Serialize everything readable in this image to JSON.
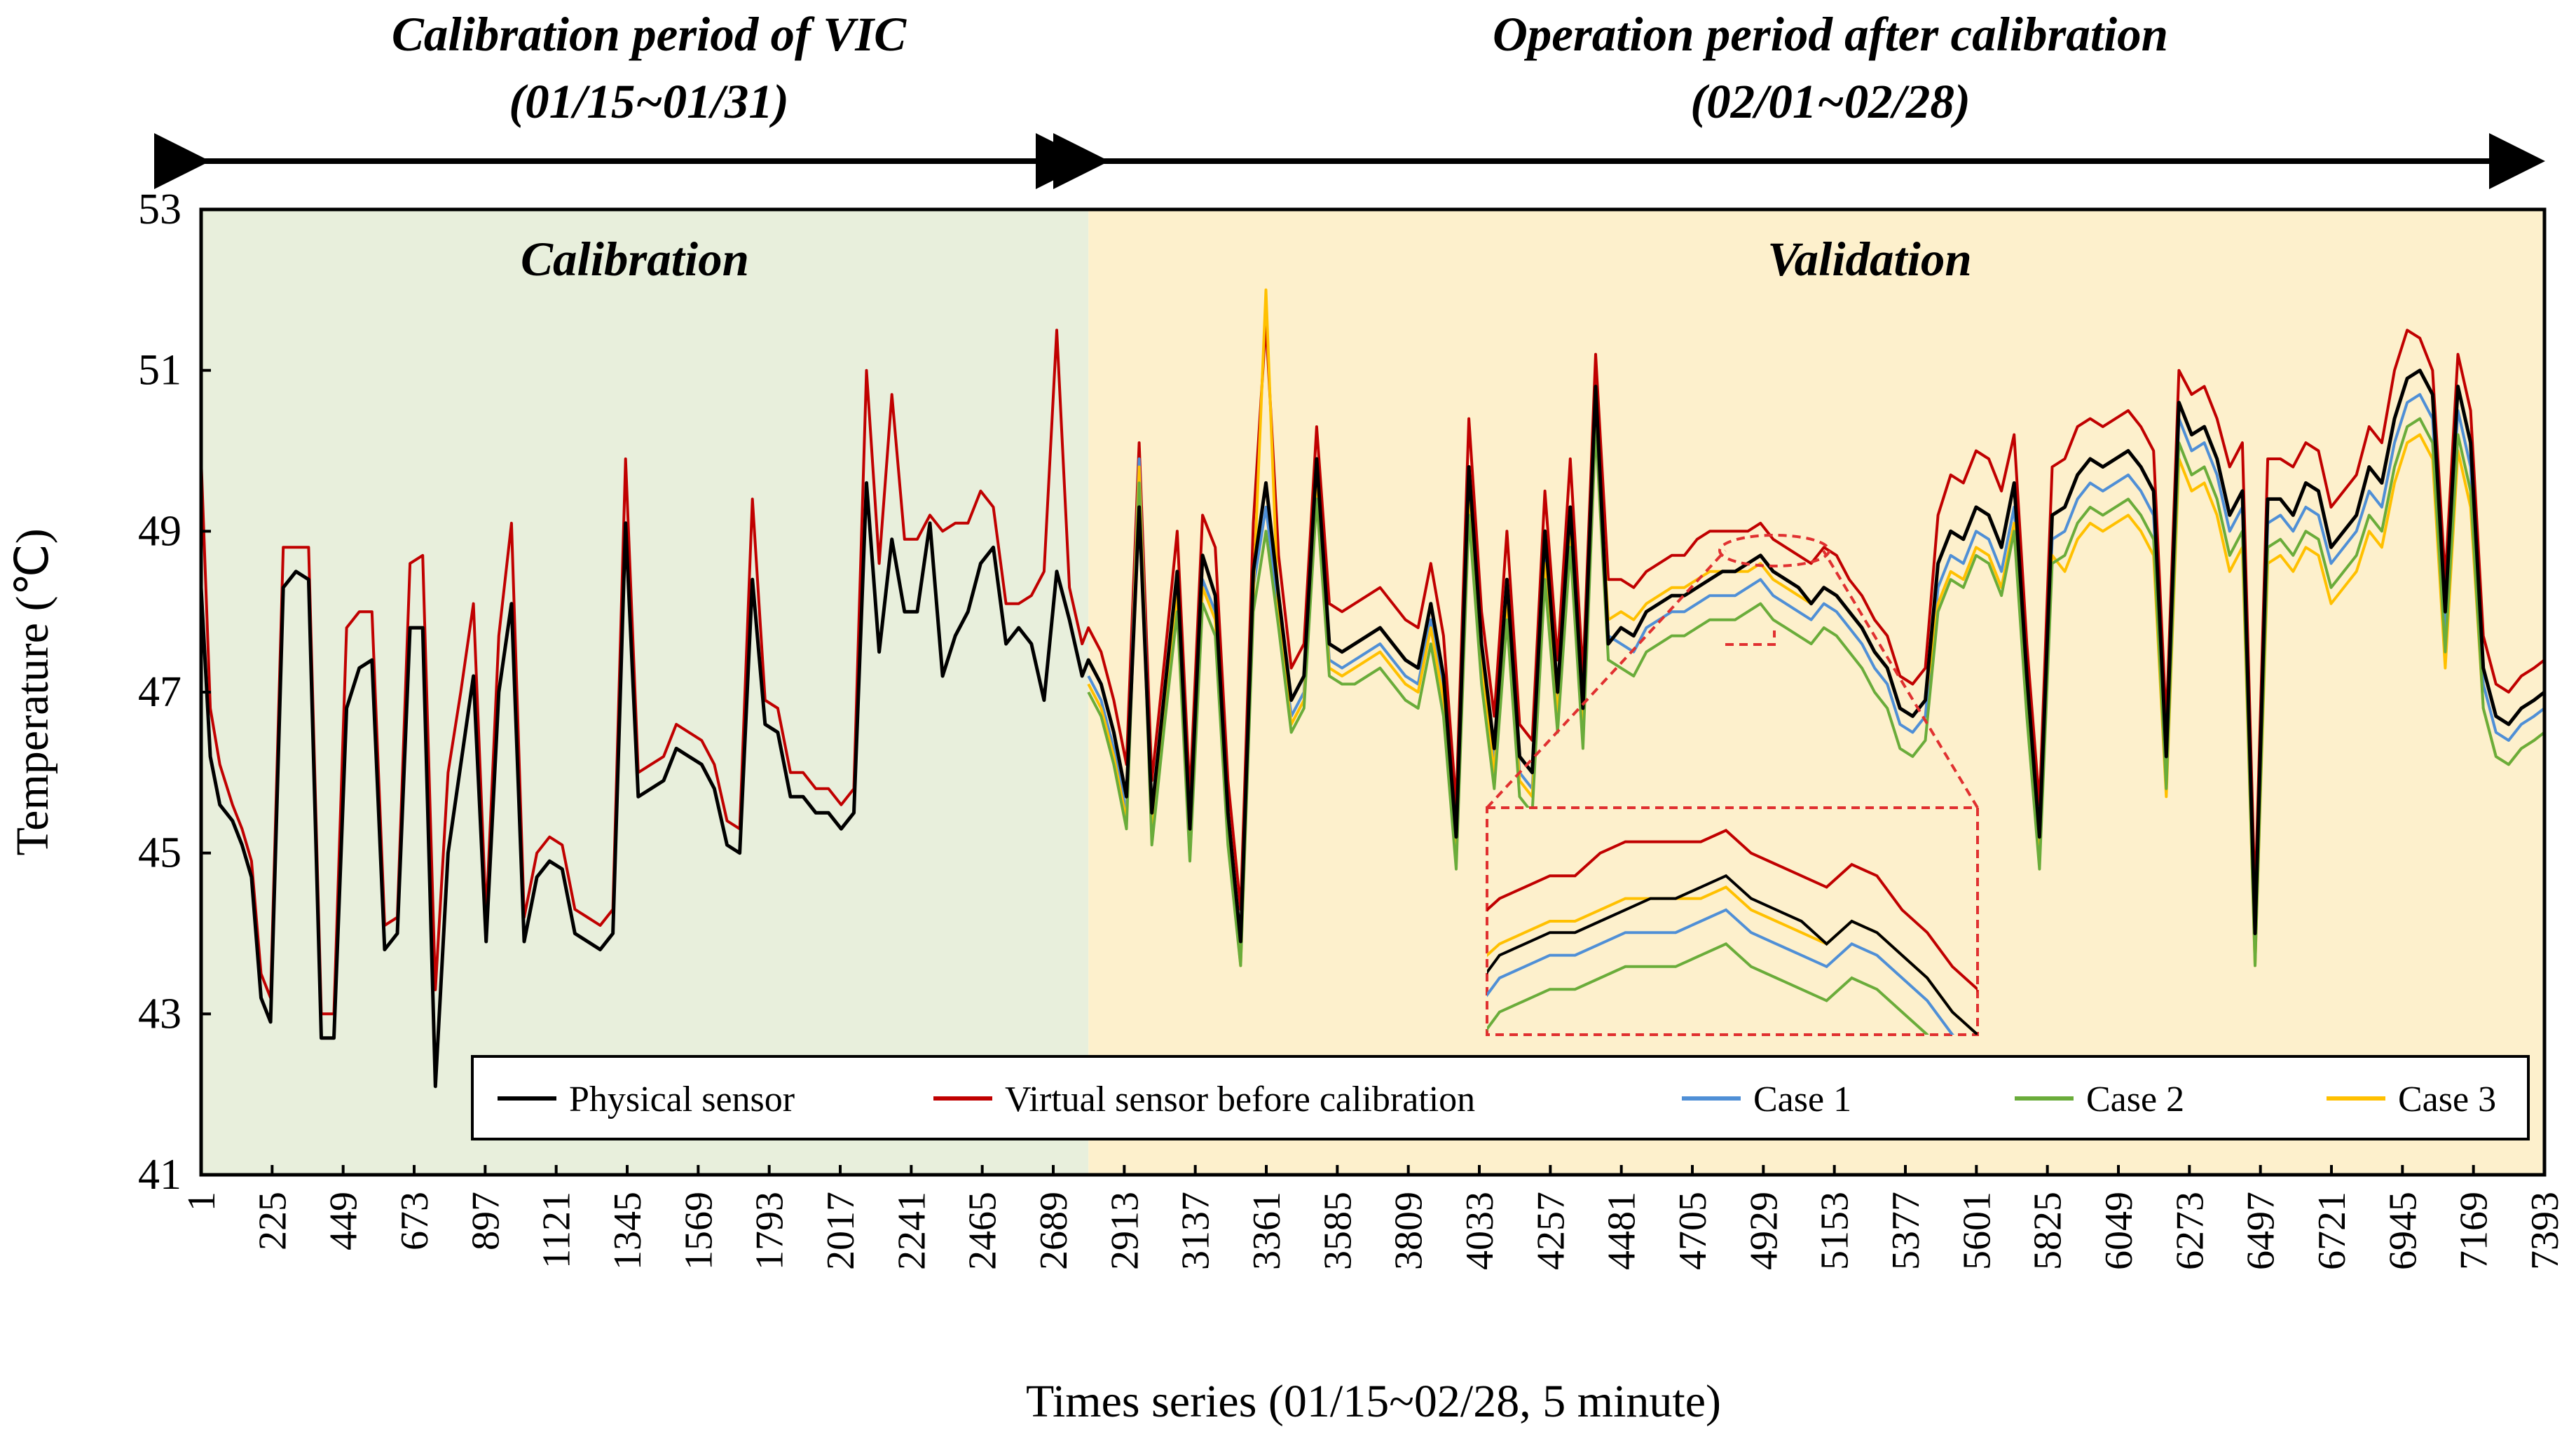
{
  "headers": {
    "left_line1": "Calibration period of VIC",
    "left_line2": "(01/15~01/31)",
    "right_line1": "Operation period after calibration",
    "right_line2": "(02/01~02/28)"
  },
  "region_labels": {
    "calibration": "Calibration",
    "validation": "Validation"
  },
  "colors": {
    "calibration_bg": "#e8efdc",
    "validation_bg": "#fdf0cc",
    "physical": "#000000",
    "virtual": "#c00000",
    "case1": "#4f8fd6",
    "case2": "#6aac3a",
    "case3": "#ffc000",
    "zoom_box": "#e03030"
  },
  "chart_data": {
    "type": "line",
    "title": "",
    "xlabel": "Times series (01/15~02/28, 5 minute)",
    "ylabel": "Temperature (℃)",
    "xlim": [
      1,
      7393
    ],
    "ylim": [
      41,
      53
    ],
    "yticks": [
      41,
      43,
      45,
      47,
      49,
      51,
      53
    ],
    "xticks": [
      "1",
      "225",
      "449",
      "673",
      "897",
      "1121",
      "1345",
      "1569",
      "1793",
      "2017",
      "2241",
      "2465",
      "2689",
      "2913",
      "3137",
      "3361",
      "3585",
      "3809",
      "4033",
      "4257",
      "4481",
      "4705",
      "4929",
      "5153",
      "5377",
      "5601",
      "5825",
      "6049",
      "6273",
      "6497",
      "6721",
      "6945",
      "7169",
      "7393"
    ],
    "calibration_end": 2800,
    "legend_position": "bottom-right",
    "grid": false,
    "x": [
      1,
      30,
      60,
      100,
      130,
      160,
      190,
      220,
      260,
      300,
      340,
      380,
      420,
      460,
      500,
      540,
      580,
      620,
      660,
      700,
      740,
      780,
      820,
      860,
      900,
      940,
      980,
      1020,
      1060,
      1100,
      1140,
      1180,
      1220,
      1260,
      1300,
      1340,
      1380,
      1420,
      1460,
      1500,
      1540,
      1580,
      1620,
      1660,
      1700,
      1740,
      1780,
      1820,
      1860,
      1900,
      1940,
      1980,
      2020,
      2060,
      2100,
      2140,
      2180,
      2220,
      2260,
      2300,
      2340,
      2380,
      2420,
      2460,
      2500,
      2540,
      2580,
      2620,
      2660,
      2700,
      2740,
      2780,
      2800,
      2840,
      2880,
      2920,
      2960,
      3000,
      3040,
      3080,
      3120,
      3160,
      3200,
      3240,
      3280,
      3320,
      3360,
      3400,
      3440,
      3480,
      3520,
      3560,
      3600,
      3640,
      3680,
      3720,
      3760,
      3800,
      3840,
      3880,
      3920,
      3960,
      4000,
      4040,
      4080,
      4120,
      4160,
      4200,
      4240,
      4280,
      4320,
      4360,
      4400,
      4440,
      4480,
      4520,
      4560,
      4600,
      4640,
      4680,
      4720,
      4760,
      4800,
      4840,
      4880,
      4920,
      4960,
      5000,
      5040,
      5080,
      5120,
      5160,
      5200,
      5240,
      5280,
      5320,
      5360,
      5400,
      5440,
      5480,
      5520,
      5560,
      5600,
      5640,
      5680,
      5720,
      5760,
      5800,
      5840,
      5880,
      5920,
      5960,
      6000,
      6040,
      6080,
      6120,
      6160,
      6200,
      6240,
      6280,
      6320,
      6360,
      6400,
      6440,
      6480,
      6520,
      6560,
      6600,
      6640,
      6680,
      6720,
      6760,
      6800,
      6840,
      6880,
      6920,
      6960,
      7000,
      7040,
      7080,
      7120,
      7160,
      7200,
      7240,
      7280,
      7320,
      7360,
      7393
    ],
    "series": [
      {
        "name": "Physical sensor",
        "color": "#000000",
        "values": [
          48.3,
          46.2,
          45.6,
          45.4,
          45.1,
          44.7,
          43.2,
          42.9,
          48.3,
          48.5,
          48.4,
          42.7,
          42.7,
          46.8,
          47.3,
          47.4,
          43.8,
          44.0,
          47.8,
          47.8,
          42.1,
          45.0,
          46.1,
          47.2,
          43.9,
          47.0,
          48.1,
          43.9,
          44.7,
          44.9,
          44.8,
          44.0,
          43.9,
          43.8,
          44.0,
          49.1,
          45.7,
          45.8,
          45.9,
          46.3,
          46.2,
          46.1,
          45.8,
          45.1,
          45.0,
          48.4,
          46.6,
          46.5,
          45.7,
          45.7,
          45.5,
          45.5,
          45.3,
          45.5,
          49.6,
          47.5,
          48.9,
          48.0,
          48.0,
          49.1,
          47.2,
          47.7,
          48.0,
          48.6,
          48.8,
          47.6,
          47.8,
          47.6,
          46.9,
          48.5,
          47.9,
          47.2,
          47.4,
          47.1,
          46.5,
          45.7,
          49.3,
          45.5,
          47.0,
          48.5,
          45.3,
          48.7,
          48.2,
          45.5,
          43.9,
          48.5,
          49.6,
          48.2,
          46.9,
          47.2,
          49.9,
          47.6,
          47.5,
          47.6,
          47.7,
          47.8,
          47.6,
          47.4,
          47.3,
          48.1,
          47.2,
          45.2,
          49.8,
          47.6,
          46.3,
          48.4,
          46.2,
          46.0,
          49.0,
          47.0,
          49.3,
          46.8,
          50.8,
          47.6,
          47.8,
          47.7,
          48.0,
          48.1,
          48.2,
          48.2,
          48.3,
          48.4,
          48.5,
          48.5,
          48.6,
          48.7,
          48.5,
          48.4,
          48.3,
          48.1,
          48.3,
          48.2,
          48.0,
          47.8,
          47.5,
          47.3,
          46.8,
          46.7,
          46.9,
          48.6,
          49.0,
          48.9,
          49.3,
          49.2,
          48.8,
          49.6,
          47.2,
          45.2,
          49.2,
          49.3,
          49.7,
          49.9,
          49.8,
          49.9,
          50.0,
          49.8,
          49.5,
          46.2,
          50.6,
          50.2,
          50.3,
          49.9,
          49.2,
          49.5,
          44.0,
          49.4,
          49.4,
          49.2,
          49.6,
          49.5,
          48.8,
          49.0,
          49.2,
          49.8,
          49.6,
          50.4,
          50.9,
          51.0,
          50.7,
          48.0,
          50.8,
          50.1,
          47.3,
          46.7,
          46.6,
          46.8,
          46.9,
          47.0
        ]
      },
      {
        "name": "Virtual sensor before calibration",
        "color": "#c00000",
        "values": [
          49.9,
          46.8,
          46.1,
          45.6,
          45.3,
          44.9,
          43.5,
          43.2,
          48.8,
          48.8,
          48.8,
          43.0,
          43.0,
          47.8,
          48.0,
          48.0,
          44.1,
          44.2,
          48.6,
          48.7,
          43.3,
          46.0,
          47.0,
          48.1,
          44.2,
          47.7,
          49.1,
          44.2,
          45.0,
          45.2,
          45.1,
          44.3,
          44.2,
          44.1,
          44.3,
          49.9,
          46.0,
          46.1,
          46.2,
          46.6,
          46.5,
          46.4,
          46.1,
          45.4,
          45.3,
          49.4,
          46.9,
          46.8,
          46.0,
          46.0,
          45.8,
          45.8,
          45.6,
          45.8,
          51.0,
          48.6,
          50.7,
          48.9,
          48.9,
          49.2,
          49.0,
          49.1,
          49.1,
          49.5,
          49.3,
          48.1,
          48.1,
          48.2,
          48.5,
          51.5,
          48.3,
          47.6,
          47.8,
          47.5,
          46.9,
          46.1,
          50.1,
          45.9,
          47.4,
          49.0,
          45.7,
          49.2,
          48.8,
          45.9,
          44.3,
          49.1,
          51.6,
          48.7,
          47.3,
          47.6,
          50.3,
          48.1,
          48.0,
          48.1,
          48.2,
          48.3,
          48.1,
          47.9,
          47.8,
          48.6,
          47.7,
          45.6,
          50.4,
          48.0,
          46.7,
          49.0,
          46.6,
          46.4,
          49.5,
          47.4,
          49.9,
          47.2,
          51.2,
          48.4,
          48.4,
          48.3,
          48.5,
          48.6,
          48.7,
          48.7,
          48.9,
          49.0,
          49.0,
          49.0,
          49.0,
          49.1,
          48.9,
          48.8,
          48.7,
          48.6,
          48.8,
          48.7,
          48.4,
          48.2,
          47.9,
          47.7,
          47.2,
          47.1,
          47.3,
          49.2,
          49.7,
          49.6,
          50.0,
          49.9,
          49.5,
          50.2,
          47.6,
          45.6,
          49.8,
          49.9,
          50.3,
          50.4,
          50.3,
          50.4,
          50.5,
          50.3,
          50.0,
          46.6,
          51.0,
          50.7,
          50.8,
          50.4,
          49.8,
          50.1,
          44.4,
          49.9,
          49.9,
          49.8,
          50.1,
          50.0,
          49.3,
          49.5,
          49.7,
          50.3,
          50.1,
          51.0,
          51.5,
          51.4,
          51.0,
          48.4,
          51.2,
          50.5,
          47.7,
          47.1,
          47.0,
          47.2,
          47.3,
          47.4
        ]
      },
      {
        "name": "Case 1",
        "color": "#4f8fd6",
        "values": [
          null,
          null,
          null,
          null,
          null,
          null,
          null,
          null,
          null,
          null,
          null,
          null,
          null,
          null,
          null,
          null,
          null,
          null,
          null,
          null,
          null,
          null,
          null,
          null,
          null,
          null,
          null,
          null,
          null,
          null,
          null,
          null,
          null,
          null,
          null,
          null,
          null,
          null,
          null,
          null,
          null,
          null,
          null,
          null,
          null,
          null,
          null,
          null,
          null,
          null,
          null,
          null,
          null,
          null,
          null,
          null,
          null,
          null,
          null,
          null,
          null,
          null,
          null,
          null,
          null,
          null,
          null,
          null,
          null,
          null,
          null,
          null,
          47.2,
          46.9,
          46.3,
          45.5,
          49.9,
          45.3,
          46.8,
          48.3,
          45.1,
          48.4,
          48.0,
          45.3,
          43.7,
          48.3,
          49.3,
          48.0,
          46.7,
          47.0,
          49.7,
          47.4,
          47.3,
          47.4,
          47.5,
          47.6,
          47.4,
          47.2,
          47.1,
          47.9,
          47.0,
          45.0,
          49.5,
          47.4,
          46.1,
          48.2,
          46.0,
          45.8,
          48.7,
          46.8,
          49.1,
          46.6,
          50.6,
          47.7,
          47.6,
          47.5,
          47.8,
          47.9,
          48.0,
          48.0,
          48.1,
          48.2,
          48.2,
          48.2,
          48.3,
          48.4,
          48.2,
          48.1,
          48.0,
          47.9,
          48.1,
          48.0,
          47.8,
          47.6,
          47.3,
          47.1,
          46.6,
          46.5,
          46.7,
          48.3,
          48.7,
          48.6,
          49.0,
          48.9,
          48.5,
          49.3,
          47.0,
          45.0,
          48.9,
          49.0,
          49.4,
          49.6,
          49.5,
          49.6,
          49.7,
          49.5,
          49.2,
          46.0,
          50.4,
          50.0,
          50.1,
          49.7,
          49.0,
          49.3,
          43.8,
          49.1,
          49.2,
          49.0,
          49.3,
          49.2,
          48.6,
          48.8,
          49.0,
          49.5,
          49.3,
          50.1,
          50.6,
          50.7,
          50.4,
          47.8,
          50.5,
          49.8,
          47.1,
          46.5,
          46.4,
          46.6,
          46.7,
          46.8
        ]
      },
      {
        "name": "Case 2",
        "color": "#6aac3a",
        "values": [
          null,
          null,
          null,
          null,
          null,
          null,
          null,
          null,
          null,
          null,
          null,
          null,
          null,
          null,
          null,
          null,
          null,
          null,
          null,
          null,
          null,
          null,
          null,
          null,
          null,
          null,
          null,
          null,
          null,
          null,
          null,
          null,
          null,
          null,
          null,
          null,
          null,
          null,
          null,
          null,
          null,
          null,
          null,
          null,
          null,
          null,
          null,
          null,
          null,
          null,
          null,
          null,
          null,
          null,
          null,
          null,
          null,
          null,
          null,
          null,
          null,
          null,
          null,
          null,
          null,
          null,
          null,
          null,
          null,
          null,
          null,
          null,
          47.0,
          46.7,
          46.1,
          45.3,
          49.6,
          45.1,
          46.6,
          48.0,
          44.9,
          48.1,
          47.7,
          45.1,
          43.6,
          48.0,
          49.0,
          47.8,
          46.5,
          46.8,
          49.4,
          47.2,
          47.1,
          47.1,
          47.2,
          47.3,
          47.1,
          46.9,
          46.8,
          47.6,
          46.7,
          44.8,
          49.2,
          47.1,
          45.8,
          47.9,
          45.7,
          45.5,
          48.4,
          46.5,
          48.8,
          46.3,
          50.3,
          47.4,
          47.3,
          47.2,
          47.5,
          47.6,
          47.7,
          47.7,
          47.8,
          47.9,
          47.9,
          47.9,
          48.0,
          48.1,
          47.9,
          47.8,
          47.7,
          47.6,
          47.8,
          47.7,
          47.5,
          47.3,
          47.0,
          46.8,
          46.3,
          46.2,
          46.4,
          48.0,
          48.4,
          48.3,
          48.7,
          48.6,
          48.2,
          49.0,
          46.7,
          44.8,
          48.6,
          48.7,
          49.1,
          49.3,
          49.2,
          49.3,
          49.4,
          49.2,
          48.9,
          45.8,
          50.1,
          49.7,
          49.8,
          49.4,
          48.7,
          49.0,
          43.6,
          48.8,
          48.9,
          48.7,
          49.0,
          48.9,
          48.3,
          48.5,
          48.7,
          49.2,
          49.0,
          49.8,
          50.3,
          50.4,
          50.1,
          47.5,
          50.2,
          49.5,
          46.8,
          46.2,
          46.1,
          46.3,
          46.4,
          46.5
        ]
      },
      {
        "name": "Case 3",
        "color": "#ffc000",
        "values": [
          null,
          null,
          null,
          null,
          null,
          null,
          null,
          null,
          null,
          null,
          null,
          null,
          null,
          null,
          null,
          null,
          null,
          null,
          null,
          null,
          null,
          null,
          null,
          null,
          null,
          null,
          null,
          null,
          null,
          null,
          null,
          null,
          null,
          null,
          null,
          null,
          null,
          null,
          null,
          null,
          null,
          null,
          null,
          null,
          null,
          null,
          null,
          null,
          null,
          null,
          null,
          null,
          null,
          null,
          null,
          null,
          null,
          null,
          null,
          null,
          null,
          null,
          null,
          null,
          null,
          null,
          null,
          null,
          null,
          null,
          null,
          null,
          47.1,
          46.8,
          46.2,
          45.4,
          49.8,
          45.2,
          46.7,
          48.2,
          45.0,
          48.3,
          47.9,
          45.2,
          43.6,
          48.2,
          52.0,
          47.9,
          46.6,
          46.9,
          49.6,
          47.3,
          47.2,
          47.3,
          47.4,
          47.5,
          47.3,
          47.1,
          47.0,
          47.8,
          46.9,
          44.9,
          49.4,
          47.3,
          46.0,
          48.1,
          45.9,
          45.7,
          48.6,
          46.7,
          49.0,
          46.5,
          50.5,
          47.9,
          48.0,
          47.9,
          48.1,
          48.2,
          48.3,
          48.3,
          48.4,
          48.5,
          48.5,
          48.5,
          48.5,
          48.6,
          48.4,
          48.3,
          48.2,
          48.1,
          48.3,
          48.2,
          48.0,
          47.8,
          47.5,
          47.3,
          46.8,
          46.7,
          46.9,
          48.1,
          48.5,
          48.4,
          48.8,
          48.7,
          48.3,
          49.1,
          46.9,
          44.9,
          48.7,
          48.5,
          48.9,
          49.1,
          49.0,
          49.1,
          49.2,
          49.0,
          48.7,
          45.7,
          49.9,
          49.5,
          49.6,
          49.2,
          48.5,
          48.8,
          43.6,
          48.6,
          48.7,
          48.5,
          48.8,
          48.7,
          48.1,
          48.3,
          48.5,
          49.0,
          48.8,
          49.6,
          50.1,
          50.2,
          49.9,
          47.3,
          50.0,
          49.3,
          46.8,
          46.2,
          46.1,
          46.3,
          46.4,
          46.5
        ]
      }
    ]
  }
}
